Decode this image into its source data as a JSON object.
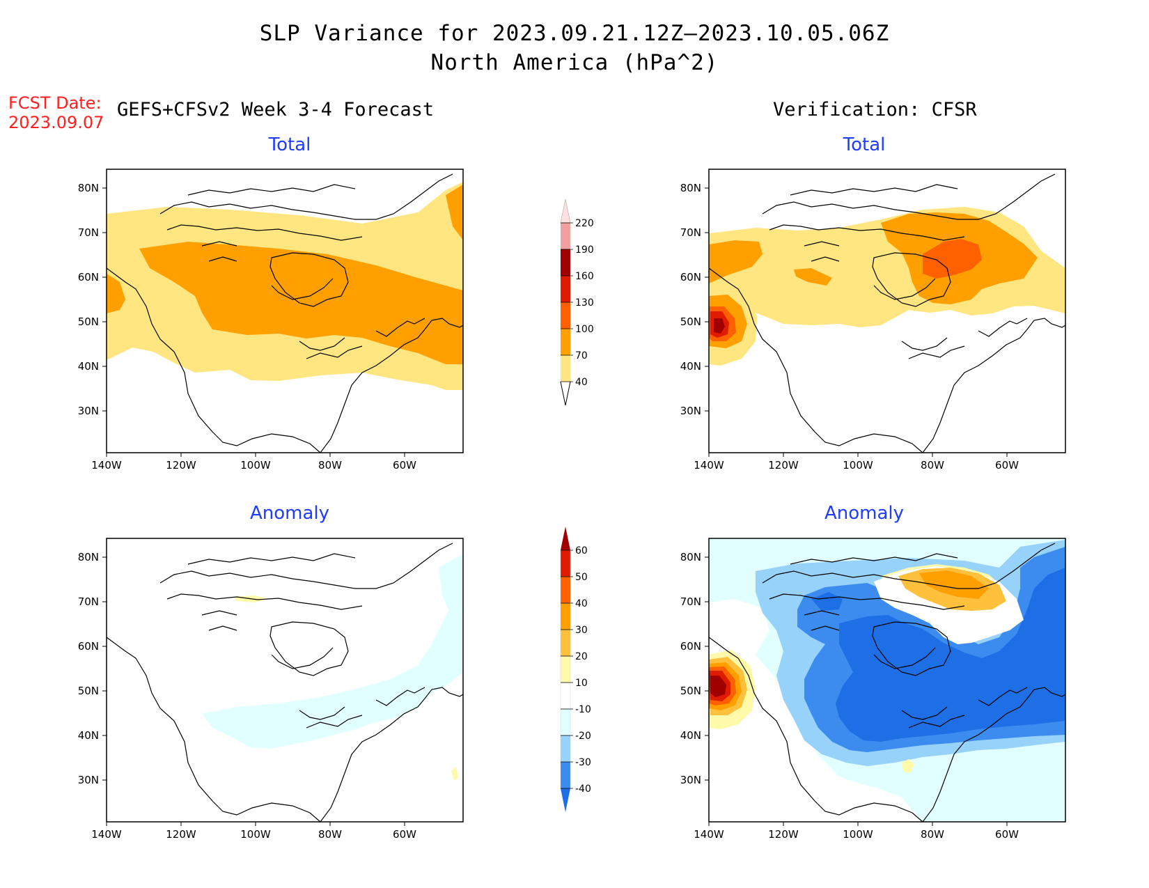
{
  "title": {
    "line1": "SLP Variance for 2023.09.21.12Z—2023.10.05.06Z",
    "line2": "North America (hPa^2)"
  },
  "forecast": {
    "date_label": "FCST Date:",
    "date_value": "2023.09.07",
    "model_label": "GEFS+CFSv2 Week 3-4 Forecast"
  },
  "verification": {
    "label": "Verification: CFSR"
  },
  "panels": {
    "fcst_total": {
      "title": "Total"
    },
    "fcst_anomaly": {
      "title": "Anomaly"
    },
    "ver_total": {
      "title": "Total"
    },
    "ver_anomaly": {
      "title": "Anomaly"
    }
  },
  "axes": {
    "lat_labels": [
      "80N",
      "70N",
      "60N",
      "50N",
      "40N",
      "30N"
    ],
    "lon_labels": [
      "140W",
      "120W",
      "100W",
      "80W",
      "60W"
    ]
  },
  "total_colorbar": {
    "levels": [
      "40",
      "70",
      "100",
      "130",
      "160",
      "190",
      "220"
    ],
    "colors": [
      "#ffe680",
      "#ffa000",
      "#ff6000",
      "#e01c00",
      "#a00000",
      "#f0a0a0",
      "#ffe0e0"
    ]
  },
  "anomaly_colorbar": {
    "levels": [
      "-40",
      "-30",
      "-20",
      "-10",
      "10",
      "20",
      "30",
      "40",
      "50",
      "60"
    ],
    "colors": [
      "#1e6ee6",
      "#3c8cf0",
      "#96d2fa",
      "#e1ffff",
      "#ffffff",
      "#fffaaa",
      "#ffc03c",
      "#ffa000",
      "#ff6000",
      "#e01c00",
      "#a00000"
    ]
  },
  "colors": {
    "title_blue": "#1f3cff",
    "fcst_red": "#ff1f1f"
  }
}
